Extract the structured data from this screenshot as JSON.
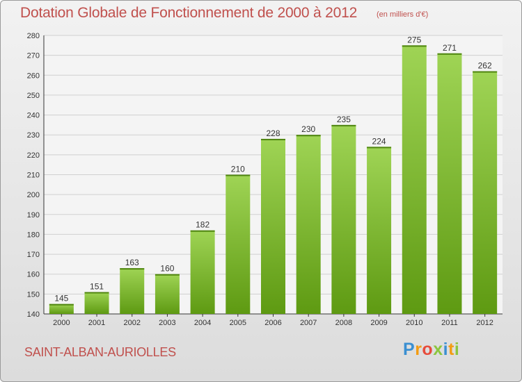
{
  "title": "Dotation Globale de Fonctionnement de 2000 à 2012",
  "subtitle": "(en milliers d'€)",
  "city": "SAINT-ALBAN-AURIOLLES",
  "logo": {
    "letters": [
      "P",
      "r",
      "o",
      "x",
      "i",
      "t",
      "i"
    ],
    "colors": [
      "#3a8fd1",
      "#f39c12",
      "#e74c3c",
      "#8cc63f",
      "#3a8fd1",
      "#f39c12",
      "#8cc63f"
    ]
  },
  "colors": {
    "bar_top": "#9fd455",
    "bar_bottom": "#5e9a12",
    "text": "#c0504d",
    "grid": "#d0d0d0"
  },
  "chart_data": {
    "type": "bar",
    "categories": [
      "2000",
      "2001",
      "2002",
      "2003",
      "2004",
      "2005",
      "2006",
      "2007",
      "2008",
      "2009",
      "2010",
      "2011",
      "2012"
    ],
    "values": [
      145,
      151,
      163,
      160,
      182,
      210,
      228,
      230,
      235,
      224,
      275,
      271,
      262
    ],
    "ylim": [
      140,
      280
    ],
    "yticks": [
      140,
      150,
      160,
      170,
      180,
      190,
      200,
      210,
      220,
      230,
      240,
      250,
      260,
      270,
      280
    ],
    "grid": true,
    "data_labels": true
  }
}
